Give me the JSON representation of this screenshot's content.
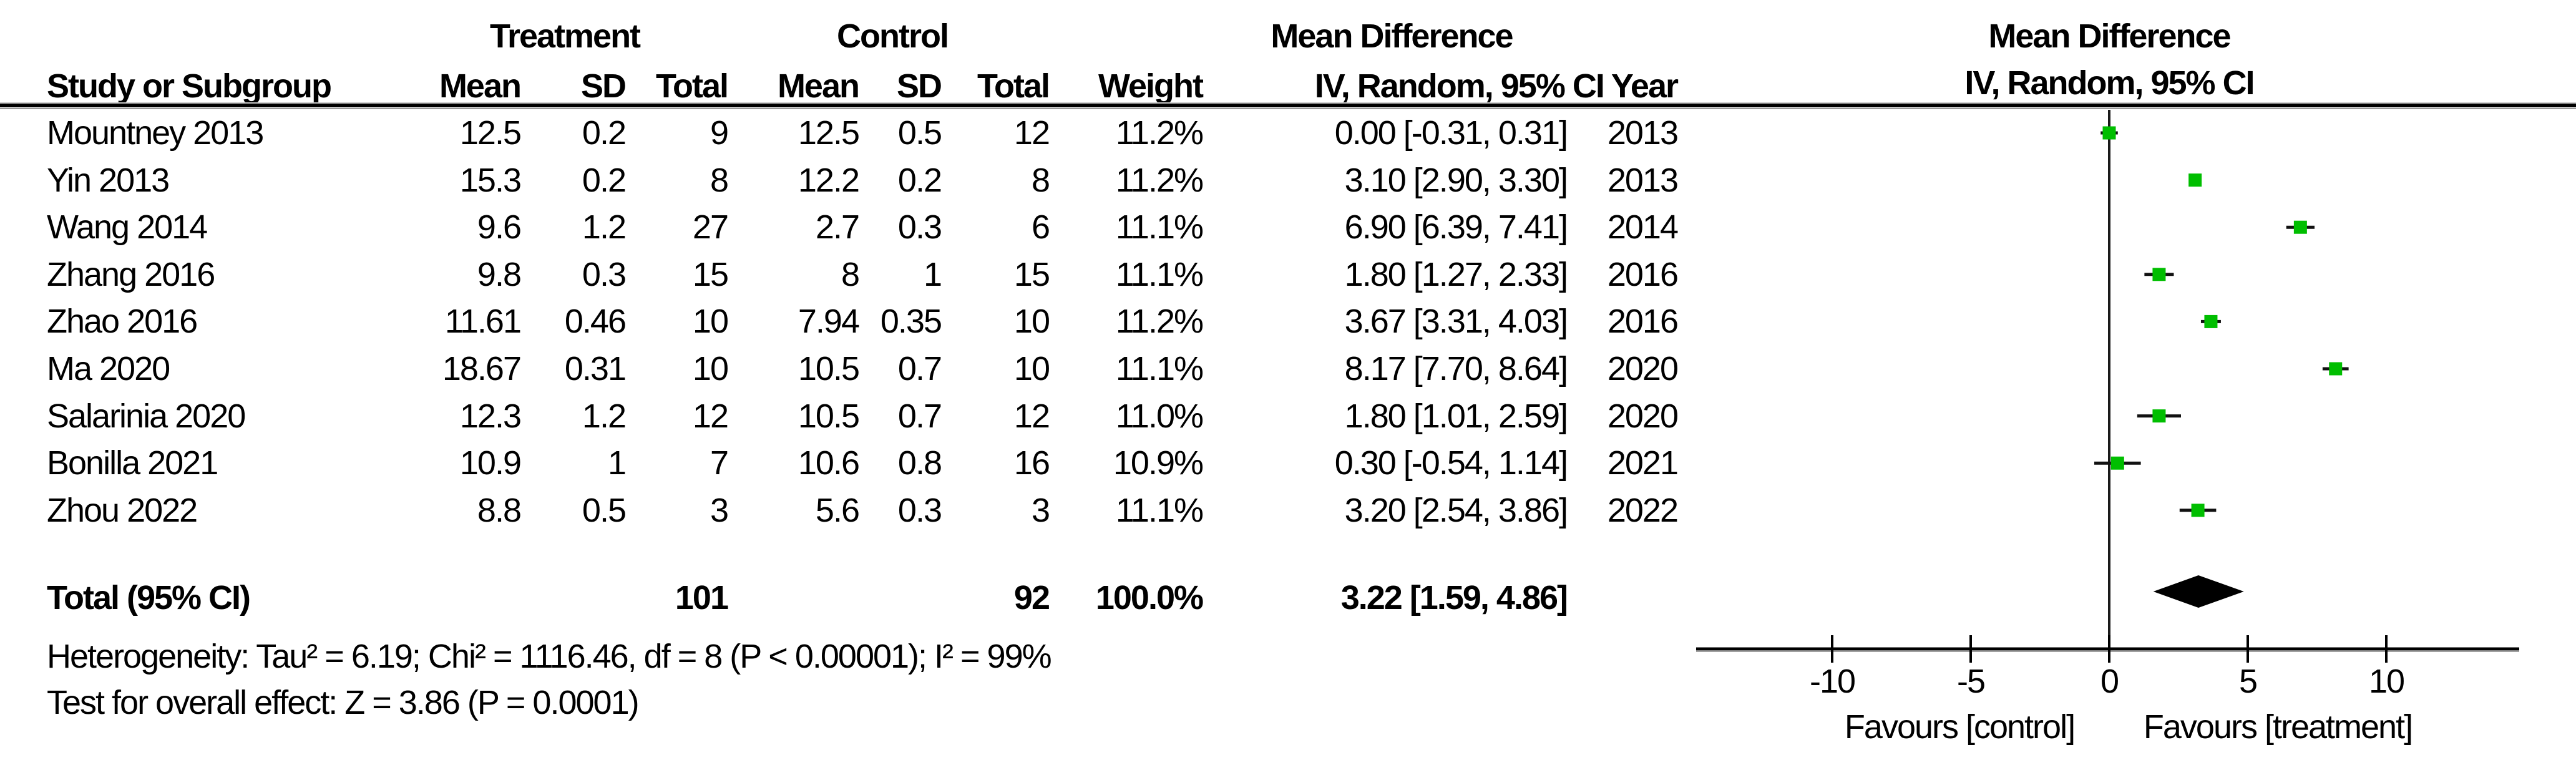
{
  "table": {
    "group_headers": {
      "treatment": "Treatment",
      "control": "Control",
      "mean_difference": "Mean Difference"
    },
    "headers": {
      "study": "Study or Subgroup",
      "mean": "Mean",
      "sd": "SD",
      "total": "Total",
      "weight": "Weight",
      "iv_year": "IV, Random, 95% CI Year"
    },
    "footer": {
      "heterogeneity": "Heterogeneity: Tau² = 6.19; Chi² = 1116.46, df = 8 (P < 0.00001); I² = 99%",
      "overall_effect": "Test for overall effect: Z = 3.86 (P = 0.0001)"
    }
  },
  "plot": {
    "header_line1": "Mean Difference",
    "header_line2": "IV, Random, 95% CI",
    "marker_color": "#00be00",
    "diamond_color": "#000000",
    "line_color": "#111111"
  },
  "chart_data": {
    "type": "scatter",
    "subtype": "forest-plot",
    "effect_measure": "Mean Difference IV, Random, 95% CI",
    "x_ticks": [
      -10,
      -5,
      0,
      5,
      10
    ],
    "xlim": [
      -14.9,
      14.8
    ],
    "xlabel_left": "Favours [control]",
    "xlabel_right": "Favours [treatment]",
    "studies": [
      {
        "study": "Mountney 2013",
        "t_mean": "12.5",
        "t_sd": "0.2",
        "t_total": "9",
        "c_mean": "12.5",
        "c_sd": "0.5",
        "c_total": "12",
        "weight": "11.2%",
        "ci_text": "0.00 [-0.31, 0.31]",
        "year": "2013",
        "md": 0.0,
        "ci_low": -0.31,
        "ci_high": 0.31
      },
      {
        "study": "Yin 2013",
        "t_mean": "15.3",
        "t_sd": "0.2",
        "t_total": "8",
        "c_mean": "12.2",
        "c_sd": "0.2",
        "c_total": "8",
        "weight": "11.2%",
        "ci_text": "3.10 [2.90, 3.30]",
        "year": "2013",
        "md": 3.1,
        "ci_low": 2.9,
        "ci_high": 3.3
      },
      {
        "study": "Wang 2014",
        "t_mean": "9.6",
        "t_sd": "1.2",
        "t_total": "27",
        "c_mean": "2.7",
        "c_sd": "0.3",
        "c_total": "6",
        "weight": "11.1%",
        "ci_text": "6.90 [6.39, 7.41]",
        "year": "2014",
        "md": 6.9,
        "ci_low": 6.39,
        "ci_high": 7.41
      },
      {
        "study": "Zhang 2016",
        "t_mean": "9.8",
        "t_sd": "0.3",
        "t_total": "15",
        "c_mean": "8",
        "c_sd": "1",
        "c_total": "15",
        "weight": "11.1%",
        "ci_text": "1.80 [1.27, 2.33]",
        "year": "2016",
        "md": 1.8,
        "ci_low": 1.27,
        "ci_high": 2.33
      },
      {
        "study": "Zhao 2016",
        "t_mean": "11.61",
        "t_sd": "0.46",
        "t_total": "10",
        "c_mean": "7.94",
        "c_sd": "0.35",
        "c_total": "10",
        "weight": "11.2%",
        "ci_text": "3.67 [3.31, 4.03]",
        "year": "2016",
        "md": 3.67,
        "ci_low": 3.31,
        "ci_high": 4.03
      },
      {
        "study": "Ma 2020",
        "t_mean": "18.67",
        "t_sd": "0.31",
        "t_total": "10",
        "c_mean": "10.5",
        "c_sd": "0.7",
        "c_total": "10",
        "weight": "11.1%",
        "ci_text": "8.17 [7.70, 8.64]",
        "year": "2020",
        "md": 8.17,
        "ci_low": 7.7,
        "ci_high": 8.64
      },
      {
        "study": "Salarinia 2020",
        "t_mean": "12.3",
        "t_sd": "1.2",
        "t_total": "12",
        "c_mean": "10.5",
        "c_sd": "0.7",
        "c_total": "12",
        "weight": "11.0%",
        "ci_text": "1.80 [1.01, 2.59]",
        "year": "2020",
        "md": 1.8,
        "ci_low": 1.01,
        "ci_high": 2.59
      },
      {
        "study": "Bonilla 2021",
        "t_mean": "10.9",
        "t_sd": "1",
        "t_total": "7",
        "c_mean": "10.6",
        "c_sd": "0.8",
        "c_total": "16",
        "weight": "10.9%",
        "ci_text": "0.30 [-0.54, 1.14]",
        "year": "2021",
        "md": 0.3,
        "ci_low": -0.54,
        "ci_high": 1.14
      },
      {
        "study": "Zhou 2022",
        "t_mean": "8.8",
        "t_sd": "0.5",
        "t_total": "3",
        "c_mean": "5.6",
        "c_sd": "0.3",
        "c_total": "3",
        "weight": "11.1%",
        "ci_text": "3.20 [2.54, 3.86]",
        "year": "2022",
        "md": 3.2,
        "ci_low": 2.54,
        "ci_high": 3.86
      }
    ],
    "total": {
      "label": "Total (95% CI)",
      "treatment_total": "101",
      "control_total": "92",
      "weight": "100.0%",
      "ci_text": "3.22 [1.59, 4.86]",
      "md": 3.22,
      "ci_low": 1.59,
      "ci_high": 4.86
    }
  }
}
